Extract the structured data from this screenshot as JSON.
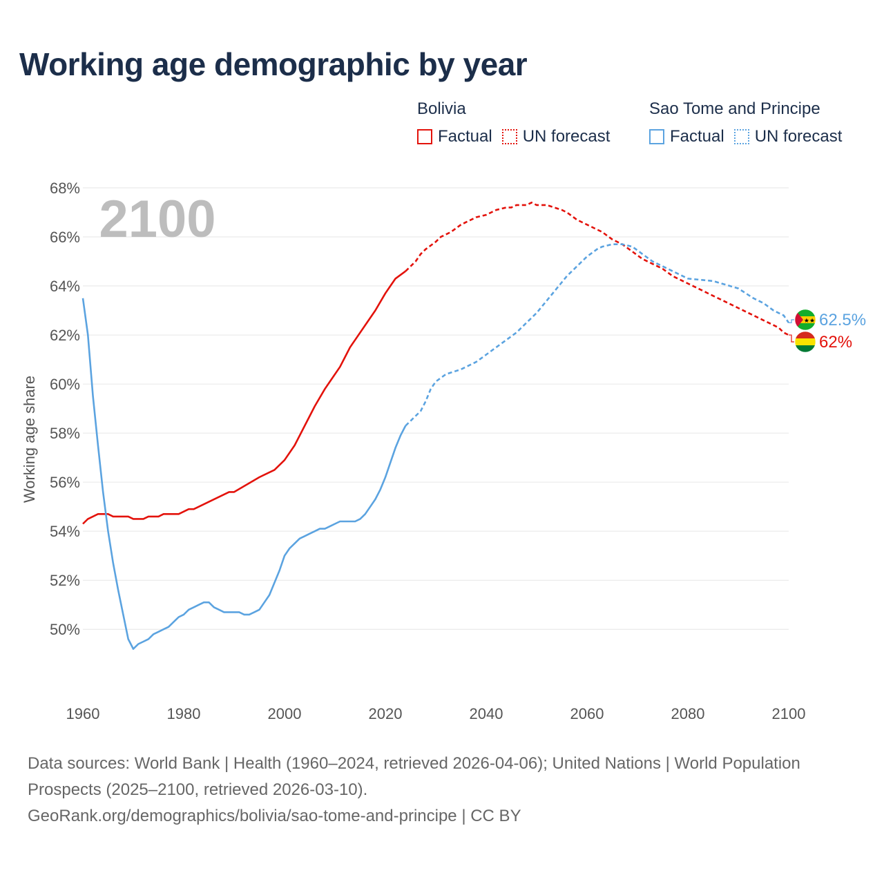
{
  "title": "Working age demographic by year",
  "legend": [
    {
      "group": "Bolivia",
      "color": "#e3120b",
      "items": [
        {
          "label": "Factual",
          "style": "solid"
        },
        {
          "label": "UN forecast",
          "style": "dotted"
        }
      ]
    },
    {
      "group": "Sao Tome and Principe",
      "color": "#5ba3e0",
      "items": [
        {
          "label": "Factual",
          "style": "solid"
        },
        {
          "label": "UN forecast",
          "style": "dotted"
        }
      ]
    }
  ],
  "chart_data": {
    "type": "line",
    "title": "Working age demographic by year",
    "year_watermark": "2100",
    "xlabel": "",
    "ylabel": "Working age share",
    "xlim": [
      1960,
      2100
    ],
    "ylim": [
      47.5,
      68
    ],
    "x_ticks": [
      "1960",
      "1980",
      "2000",
      "2020",
      "2040",
      "2060",
      "2080",
      "2100"
    ],
    "y_ticks": [
      "50%",
      "52%",
      "54%",
      "56%",
      "58%",
      "60%",
      "62%",
      "64%",
      "66%",
      "68%"
    ],
    "forecast_start_year": 2024,
    "series": [
      {
        "name": "Bolivia",
        "color": "#e3120b",
        "end_label": "62%",
        "x": [
          1960,
          1961,
          1963,
          1964,
          1965,
          1966,
          1968,
          1969,
          1970,
          1972,
          1973,
          1975,
          1976,
          1978,
          1979,
          1981,
          1982,
          1985,
          1989,
          1990,
          1995,
          1998,
          2000,
          2002,
          2004,
          2006,
          2008,
          2009,
          2011,
          2012,
          2013,
          2014,
          2016,
          2018,
          2020,
          2021,
          2022,
          2024,
          2025,
          2026,
          2027,
          2028,
          2030,
          2031,
          2032,
          2033,
          2035,
          2036,
          2037,
          2038,
          2040,
          2041,
          2042,
          2044,
          2045,
          2046,
          2047,
          2048,
          2049,
          2050,
          2051,
          2052,
          2055,
          2056,
          2058,
          2060,
          2062,
          2063,
          2065,
          2067,
          2069,
          2071,
          2073,
          2075,
          2077,
          2080,
          2085,
          2090,
          2093,
          2094,
          2095,
          2096,
          2098,
          2099,
          2100
        ],
        "values": [
          54.3,
          54.5,
          54.7,
          54.7,
          54.7,
          54.6,
          54.6,
          54.6,
          54.5,
          54.5,
          54.6,
          54.6,
          54.7,
          54.7,
          54.7,
          54.9,
          54.9,
          55.2,
          55.6,
          55.6,
          56.2,
          56.5,
          56.9,
          57.5,
          58.3,
          59.1,
          59.8,
          60.1,
          60.7,
          61.1,
          61.5,
          61.8,
          62.4,
          63.0,
          63.7,
          64.0,
          64.3,
          64.6,
          64.8,
          65.0,
          65.3,
          65.5,
          65.8,
          66.0,
          66.1,
          66.2,
          66.5,
          66.6,
          66.7,
          66.8,
          66.9,
          67.0,
          67.1,
          67.2,
          67.2,
          67.3,
          67.3,
          67.3,
          67.4,
          67.3,
          67.3,
          67.3,
          67.1,
          67.0,
          66.7,
          66.5,
          66.3,
          66.2,
          65.9,
          65.7,
          65.4,
          65.1,
          64.9,
          64.7,
          64.4,
          64.1,
          63.6,
          63.1,
          62.8,
          62.7,
          62.6,
          62.5,
          62.3,
          62.1,
          62.0
        ]
      },
      {
        "name": "Sao Tome and Principe",
        "color": "#5ba3e0",
        "end_label": "62.5%",
        "x": [
          1960,
          1961,
          1962,
          1963,
          1964,
          1965,
          1966,
          1967,
          1968,
          1969,
          1970,
          1971,
          1972,
          1973,
          1974,
          1975,
          1976,
          1977,
          1978,
          1979,
          1980,
          1981,
          1982,
          1983,
          1984,
          1985,
          1986,
          1987,
          1988,
          1989,
          1990,
          1991,
          1992,
          1993,
          1994,
          1995,
          1996,
          1997,
          1998,
          1999,
          2000,
          2001,
          2002,
          2003,
          2004,
          2005,
          2006,
          2007,
          2008,
          2009,
          2010,
          2011,
          2012,
          2013,
          2014,
          2015,
          2016,
          2017,
          2018,
          2019,
          2020,
          2021,
          2022,
          2023,
          2024,
          2025,
          2027,
          2028,
          2029,
          2030,
          2032,
          2035,
          2038,
          2040,
          2042,
          2044,
          2046,
          2048,
          2050,
          2052,
          2054,
          2056,
          2058,
          2060,
          2062,
          2063,
          2065,
          2067,
          2069,
          2071,
          2073,
          2075,
          2077,
          2080,
          2085,
          2090,
          2093,
          2095,
          2097,
          2099,
          2100
        ],
        "values": [
          63.5,
          62.0,
          59.5,
          57.5,
          55.6,
          54.0,
          52.7,
          51.6,
          50.6,
          49.6,
          49.2,
          49.4,
          49.5,
          49.6,
          49.8,
          49.9,
          50.0,
          50.1,
          50.3,
          50.5,
          50.6,
          50.8,
          50.9,
          51.0,
          51.1,
          51.1,
          50.9,
          50.8,
          50.7,
          50.7,
          50.7,
          50.7,
          50.6,
          50.6,
          50.7,
          50.8,
          51.1,
          51.4,
          51.9,
          52.4,
          53.0,
          53.3,
          53.5,
          53.7,
          53.8,
          53.9,
          54.0,
          54.1,
          54.1,
          54.2,
          54.3,
          54.4,
          54.4,
          54.4,
          54.4,
          54.5,
          54.7,
          55.0,
          55.3,
          55.7,
          56.2,
          56.8,
          57.4,
          57.9,
          58.3,
          58.5,
          58.9,
          59.3,
          59.8,
          60.1,
          60.4,
          60.6,
          60.9,
          61.2,
          61.5,
          61.8,
          62.1,
          62.5,
          62.9,
          63.4,
          63.9,
          64.4,
          64.8,
          65.2,
          65.5,
          65.6,
          65.7,
          65.7,
          65.6,
          65.3,
          65.0,
          64.8,
          64.6,
          64.3,
          64.2,
          63.9,
          63.5,
          63.3,
          63.0,
          62.8,
          62.5
        ]
      }
    ]
  },
  "footer": {
    "line1": "Data sources: World Bank | Health (1960–2024, retrieved 2026-04-06); United Nations | World Population Prospects (2025–2100, retrieved 2026-03-10).",
    "line2": "GeoRank.org/demographics/bolivia/sao-tome-and-principe | CC BY"
  }
}
